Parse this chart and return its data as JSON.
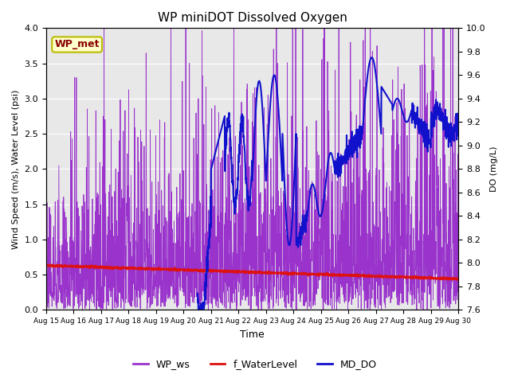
{
  "title": "WP miniDOT Dissolved Oxygen",
  "xlabel": "Time",
  "ylabel_left": "Wind Speed (m/s), Water Level (psi)",
  "ylabel_right": "DO (mg/L)",
  "ylim_left": [
    0.0,
    4.0
  ],
  "ylim_right": [
    7.6,
    10.0
  ],
  "yticks_left": [
    0.0,
    0.5,
    1.0,
    1.5,
    2.0,
    2.5,
    3.0,
    3.5,
    4.0
  ],
  "yticks_right": [
    7.6,
    7.8,
    8.0,
    8.2,
    8.4,
    8.6,
    8.8,
    9.0,
    9.2,
    9.4,
    9.6,
    9.8,
    10.0
  ],
  "xtick_labels": [
    "Aug 15",
    "Aug 16",
    "Aug 17",
    "Aug 18",
    "Aug 19",
    "Aug 20",
    "Aug 21",
    "Aug 22",
    "Aug 23",
    "Aug 24",
    "Aug 25",
    "Aug 26",
    "Aug 27",
    "Aug 28",
    "Aug 29",
    "Aug 30"
  ],
  "wp_ws_color": "#9933CC",
  "f_waterlevel_color": "#DD1111",
  "md_do_color": "#1111CC",
  "background_color": "#E8E8E8",
  "label_box_text": "WP_met",
  "label_box_facecolor": "#FFFFCC",
  "label_box_edgecolor": "#BBBB00",
  "label_box_textcolor": "#880000",
  "n_days": 15,
  "pts_per_day": 144
}
